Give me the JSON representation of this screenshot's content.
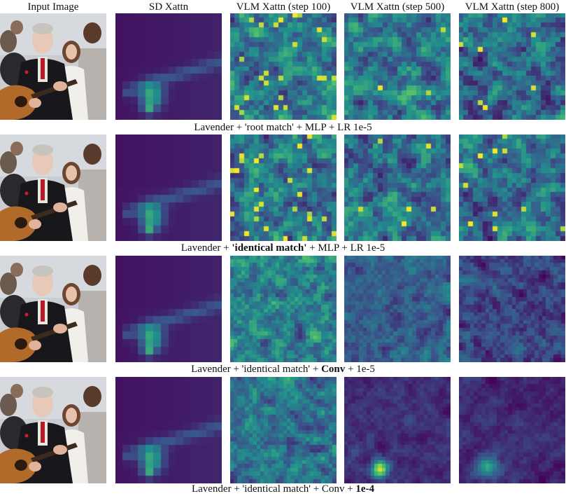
{
  "columns": [
    {
      "key": "input",
      "label": "Input Image"
    },
    {
      "key": "sd",
      "label": "SD Xattn"
    },
    {
      "key": "vlm100",
      "label": "VLM Xattn (step 100)"
    },
    {
      "key": "vlm500",
      "label": "VLM Xattn (step 500)"
    },
    {
      "key": "vlm800",
      "label": "VLM Xattn (step 800)"
    }
  ],
  "rows": [
    {
      "caption_parts": [
        {
          "text": "Lavender + 'root match' + MLP + LR 1e-5",
          "bold": false
        }
      ]
    },
    {
      "caption_parts": [
        {
          "text": "Lavender + ",
          "bold": false
        },
        {
          "text": "'identical match'",
          "bold": true
        },
        {
          "text": " + MLP + LR 1e-5",
          "bold": false
        }
      ]
    },
    {
      "caption_parts": [
        {
          "text": "Lavender + 'identical match' + ",
          "bold": false
        },
        {
          "text": "Conv",
          "bold": true
        },
        {
          "text": " + 1e-5",
          "bold": false
        }
      ]
    },
    {
      "caption_parts": [
        {
          "text": "Lavender + 'identical match' + Conv + ",
          "bold": false
        },
        {
          "text": "1e-4",
          "bold": true
        }
      ]
    }
  ],
  "colormap": {
    "name": "viridis",
    "stops": [
      "#440154",
      "#3b528b",
      "#21908d",
      "#5dc963",
      "#fde725"
    ]
  },
  "image_content": "man with blurred face playing acoustic guitar in a crowd"
}
